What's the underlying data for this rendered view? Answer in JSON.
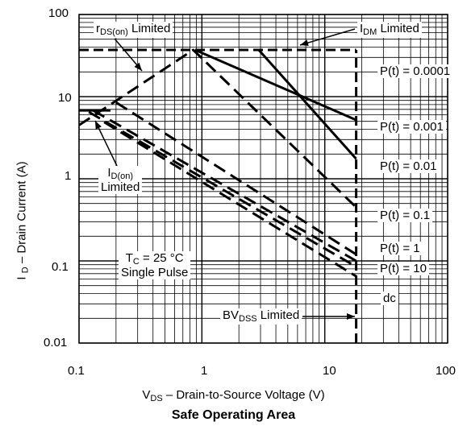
{
  "chart_data": {
    "type": "line",
    "title": "Safe Operating Area",
    "xlabel": {
      "prefix": "V",
      "sub": "DS",
      "text": "  –  Drain-to-Source Voltage (V)"
    },
    "ylabel": {
      "prefix": "I ",
      "sub": "D",
      "text": " – Drain Current (A)"
    },
    "x_scale": "log",
    "y_scale": "log",
    "xlim": [
      0.1,
      100
    ],
    "ylim": [
      0.01,
      100
    ],
    "grid": true,
    "x_tick_labels": [
      "0.1",
      "1",
      "10",
      "100"
    ],
    "y_tick_labels": [
      "0.01",
      "0.1",
      "1",
      "10",
      "100"
    ],
    "limit_lines": [
      {
        "name": "IDM Limited",
        "points": [
          [
            0.1,
            37
          ],
          [
            18,
            37
          ]
        ]
      },
      {
        "name": "BVDSS Limited",
        "points": [
          [
            18,
            0.01
          ],
          [
            18,
            37
          ]
        ]
      },
      {
        "name": "ID(on) Limited",
        "points": [
          [
            0.1,
            6.8
          ],
          [
            0.18,
            6.8
          ]
        ]
      }
    ],
    "series": [
      {
        "name": "P(t) = 0.0001",
        "style": "solid",
        "points": [
          [
            0.88,
            37
          ],
          [
            18,
            5.2
          ]
        ]
      },
      {
        "name": "P(t) = 0.001",
        "style": "solid",
        "points": [
          [
            2.9,
            37
          ],
          [
            18,
            1.75
          ]
        ]
      },
      {
        "name": "P(t) = 0.01",
        "style": "dashed",
        "points": [
          [
            0.1,
            4.5
          ],
          [
            0.85,
            37
          ],
          [
            18,
            0.45
          ]
        ]
      },
      {
        "name": "P(t) = 0.1",
        "style": "dashed",
        "points": [
          [
            0.2,
            8.5
          ],
          [
            18,
            0.12
          ]
        ]
      },
      {
        "name": "P(t) = 1",
        "style": "dashed",
        "points": [
          [
            0.13,
            6.8
          ],
          [
            18,
            0.1
          ]
        ]
      },
      {
        "name": "P(t) = 10",
        "style": "dashed",
        "points": [
          [
            0.12,
            6.5
          ],
          [
            18,
            0.085
          ]
        ]
      },
      {
        "name": "dc",
        "style": "dashed",
        "points": [
          [
            0.16,
            4.9
          ],
          [
            18,
            0.065
          ]
        ]
      }
    ],
    "annotations": {
      "rds": {
        "prefix": "r",
        "sub": "DS(on)",
        "text": " Limited"
      },
      "idm": {
        "prefix": "I",
        "sub": "DM",
        "text": " Limited"
      },
      "idon_line1": {
        "prefix": "I",
        "sub": "D(on)"
      },
      "idon_line2": "Limited",
      "tc_line1": {
        "prefix": "T",
        "sub": "C",
        "text": " = 25 °C"
      },
      "tc_line2": "Single Pulse",
      "bv": {
        "prefix": "BV",
        "sub": "DSS",
        "text": " Limited"
      },
      "pt_labels": [
        "P(t) = 0.0001",
        "P(t) = 0.001",
        "P(t) = 0.01",
        "P(t) = 0.1",
        "P(t) = 1",
        "P(t) = 10",
        "dc"
      ]
    }
  }
}
